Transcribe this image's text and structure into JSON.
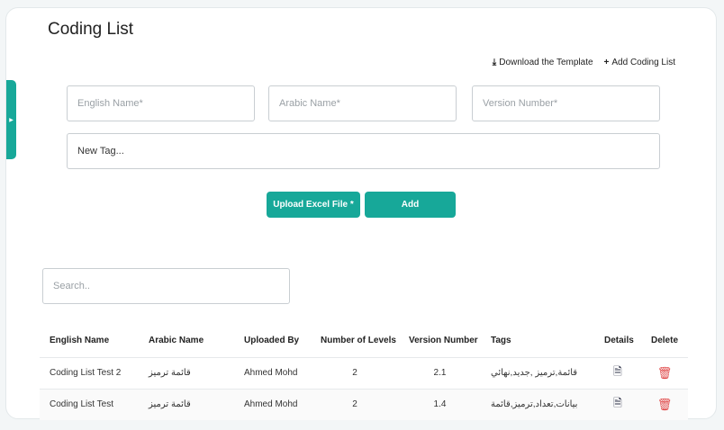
{
  "page": {
    "title": "Coding List"
  },
  "actions": {
    "download": "Download the Template",
    "add": "Add Coding List"
  },
  "form": {
    "english_placeholder": "English Name*",
    "arabic_placeholder": "Arabic Name*",
    "version_placeholder": "Version Number*",
    "tag_placeholder": "New Tag...",
    "upload_label": "Upload Excel File *",
    "add_label": "Add"
  },
  "search": {
    "placeholder": "Search.."
  },
  "table": {
    "headers": [
      "English Name",
      "Arabic Name",
      "Uploaded By",
      "Number of Levels",
      "Version Number",
      "Tags",
      "Details",
      "Delete"
    ],
    "rows": [
      {
        "english": "Coding List Test 2",
        "arabic": "قائمة ترميز",
        "uploaded_by": "Ahmed Mohd",
        "levels": "2",
        "version": "2.1",
        "tags": "قائمة,ترميز ,جديد,نهائي"
      },
      {
        "english": "Coding List Test",
        "arabic": "قائمة ترميز",
        "uploaded_by": "Ahmed Mohd",
        "levels": "2",
        "version": "1.4",
        "tags": "بيانات,تعداد,ترميز,قائمة"
      }
    ]
  },
  "colors": {
    "accent": "#17a899",
    "delete": "#e04848"
  }
}
